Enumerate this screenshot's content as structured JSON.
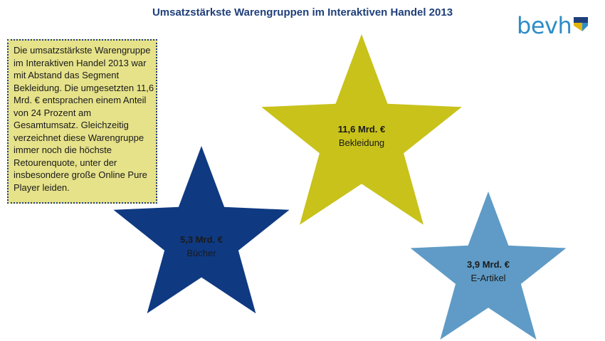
{
  "title": "Umsatzstärkste Warengruppen im Interaktiven Handel 2013",
  "logo": {
    "text": "bevh"
  },
  "info_text": "Die umsatzstärkste Warengruppe im Interaktiven Handel 2013 war mit Abstand das Segment Bekleidung. Die umgesetzten 11,6 Mrd. € entsprachen einem Anteil von 24 Prozent am Gesamtumsatz. Gleichzeitig verzeichnet diese Warengruppe immer noch die höchste Retourenquote, unter der insbesondere große Online Pure Player leiden.",
  "colors": {
    "title": "#1f3f7a",
    "box_fill": "#e6e28a",
    "box_border": "#1f3f7a",
    "logo": "#2e8cc8"
  },
  "chart_data": {
    "type": "other",
    "unit": "Mrd. €",
    "items": [
      {
        "category": "Bekleidung",
        "value": 11.6,
        "label": "11,6 Mrd. €",
        "color": "#c8c21b"
      },
      {
        "category": "Bücher",
        "value": 5.3,
        "label": "5,3 Mrd. €",
        "color": "#0f3a82"
      },
      {
        "category": "E-Artikel",
        "value": 3.9,
        "label": "3,9 Mrd. €",
        "color": "#5f9bc6"
      }
    ]
  }
}
